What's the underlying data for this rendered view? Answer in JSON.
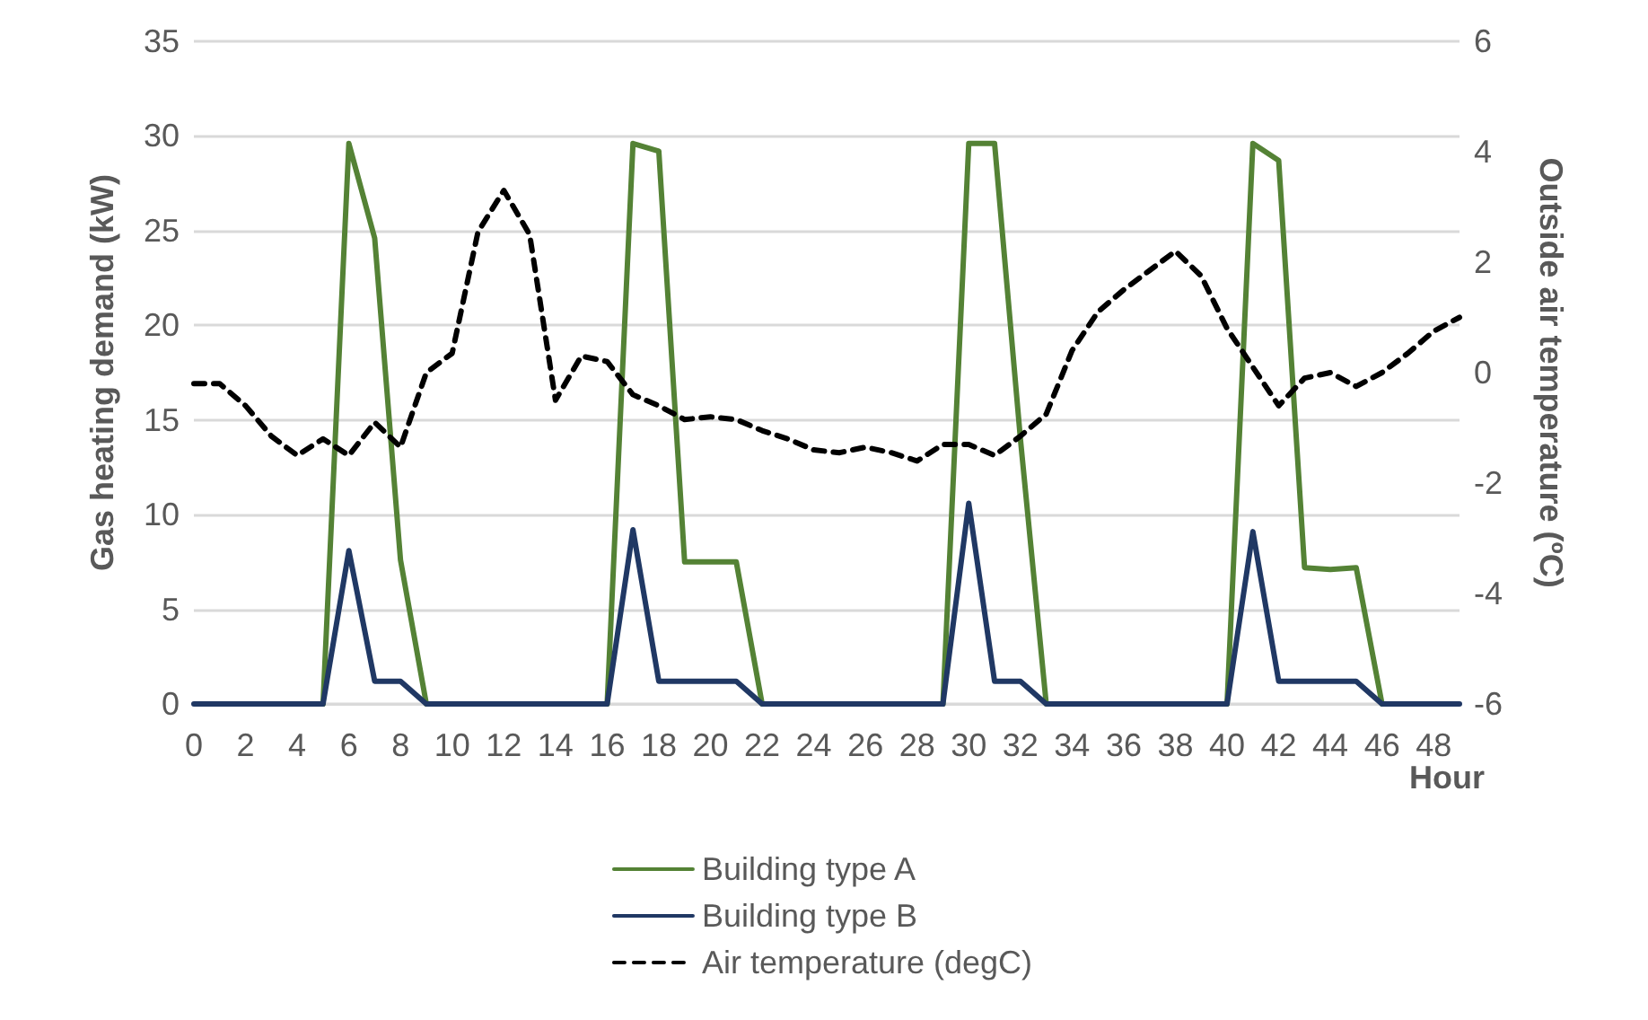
{
  "chart_data": {
    "type": "line",
    "xlabel": "Hour",
    "ylabel": "Gas heating demand (kW)",
    "y2label": "Outside air temperature (ºC)",
    "x": [
      0,
      1,
      2,
      3,
      4,
      5,
      6,
      7,
      8,
      9,
      10,
      11,
      12,
      13,
      14,
      15,
      16,
      17,
      18,
      19,
      20,
      21,
      22,
      23,
      24,
      25,
      26,
      27,
      28,
      29,
      30,
      31,
      32,
      33,
      34,
      35,
      36,
      37,
      38,
      39,
      40,
      41,
      42,
      43,
      44,
      45,
      46,
      47,
      48,
      49
    ],
    "xlim": [
      0,
      49
    ],
    "xticks": [
      0,
      2,
      4,
      6,
      8,
      10,
      12,
      14,
      16,
      18,
      20,
      22,
      24,
      26,
      28,
      30,
      32,
      34,
      36,
      38,
      40,
      42,
      44,
      46,
      48
    ],
    "ylim": [
      0,
      35
    ],
    "yticks": [
      0,
      5,
      10,
      15,
      20,
      25,
      30,
      35
    ],
    "y2lim": [
      -6,
      6
    ],
    "y2ticks": [
      -6,
      -4,
      -2,
      0,
      2,
      4,
      6
    ],
    "grid": "y",
    "legend": "bottom",
    "marker": "none",
    "series": [
      {
        "name": "Building type A",
        "color": "#548235",
        "line_style": "solid",
        "values": [
          null,
          null,
          null,
          null,
          null,
          0,
          29.6,
          24.6,
          7.6,
          0,
          null,
          null,
          null,
          null,
          null,
          null,
          0,
          29.6,
          29.2,
          7.5,
          7.5,
          7.5,
          0,
          null,
          null,
          null,
          null,
          null,
          null,
          0,
          29.6,
          29.6,
          14,
          0,
          null,
          null,
          null,
          null,
          null,
          null,
          0,
          29.6,
          28.7,
          7.2,
          7.1,
          7.2,
          0,
          null,
          null,
          null
        ]
      },
      {
        "name": "Building type B",
        "color": "#203864",
        "line_style": "solid",
        "values": [
          0,
          0,
          0,
          0,
          0,
          0,
          8.1,
          1.2,
          1.2,
          0,
          0,
          0,
          0,
          0,
          0,
          0,
          0,
          9.2,
          1.2,
          1.2,
          1.2,
          1.2,
          0,
          0,
          0,
          0,
          0,
          0,
          0,
          0,
          10.6,
          1.2,
          1.2,
          0,
          0,
          0,
          0,
          0,
          0,
          0,
          0,
          9.1,
          1.2,
          1.2,
          1.2,
          1.2,
          0,
          0,
          0,
          0
        ]
      },
      {
        "name": "Air temperature (degC)",
        "color": "#000000",
        "line_style": "dashed",
        "axis": "y2",
        "values": [
          -0.2,
          -0.2,
          -0.6,
          -1.15,
          -1.5,
          -1.2,
          -1.5,
          -0.9,
          -1.35,
          0,
          0.35,
          2.55,
          3.3,
          2.5,
          -0.5,
          0.3,
          0.2,
          -0.4,
          -0.6,
          -0.85,
          -0.8,
          -0.85,
          -1.05,
          -1.2,
          -1.4,
          -1.45,
          -1.35,
          -1.45,
          -1.6,
          -1.3,
          -1.3,
          -1.5,
          -1.15,
          -0.75,
          0.4,
          1.1,
          1.5,
          1.85,
          2.2,
          1.75,
          0.8,
          0.1,
          -0.6,
          -0.1,
          0,
          -0.25,
          0,
          0.35,
          0.75,
          1.0
        ]
      }
    ]
  }
}
